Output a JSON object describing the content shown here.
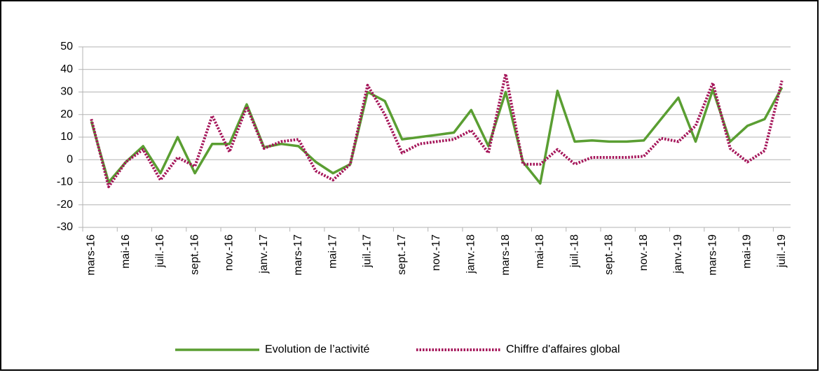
{
  "chart_data": {
    "type": "line",
    "categories": [
      "mars-16",
      null,
      "mai-16",
      null,
      "juil.-16",
      null,
      "sept.-16",
      null,
      "nov.-16",
      null,
      "janv.-17",
      null,
      "mars-17",
      null,
      "mai-17",
      null,
      "juil.-17",
      null,
      "sept.-17",
      null,
      "nov.-17",
      null,
      "janv.-18",
      null,
      "mars-18",
      null,
      "mai-18",
      null,
      "juil.-18",
      null,
      "sept.-18",
      null,
      "nov.-18",
      null,
      "janv.-19",
      null,
      "mars-19",
      null,
      "mai-19",
      null,
      "juil.-19"
    ],
    "series": [
      {
        "name": "Evolution de l’activité",
        "color": "#5a9e32",
        "dash": "solid",
        "values": [
          17,
          -10,
          -1,
          6,
          -6,
          10,
          -6,
          7,
          7,
          24.5,
          5.5,
          7,
          6,
          -1,
          -6,
          -2,
          30,
          26,
          9,
          10,
          11,
          12,
          22,
          6,
          30,
          -1,
          -10.5,
          30.5,
          8,
          8.5,
          8,
          8,
          8.5,
          18,
          27.5,
          8,
          31,
          8,
          15,
          18,
          32
        ]
      },
      {
        "name": "Chiffre d'affaires global",
        "color": "#a5165a",
        "dash": "dotted",
        "values": [
          18,
          -12,
          -1,
          4.5,
          -9,
          1,
          -3,
          19.5,
          3.5,
          23.5,
          5,
          8,
          9,
          -5,
          -9,
          -2,
          33,
          20,
          3,
          7,
          8,
          9,
          13,
          3,
          38,
          -2,
          -2,
          4.5,
          -2,
          1,
          1,
          1,
          1.5,
          9.5,
          8,
          15,
          34,
          5,
          -1,
          4,
          35
        ]
      }
    ],
    "ylim": [
      -30,
      50
    ],
    "yticks": [
      -30,
      -20,
      -10,
      0,
      10,
      20,
      30,
      40,
      50
    ],
    "grid": true,
    "legend": "bottom"
  }
}
